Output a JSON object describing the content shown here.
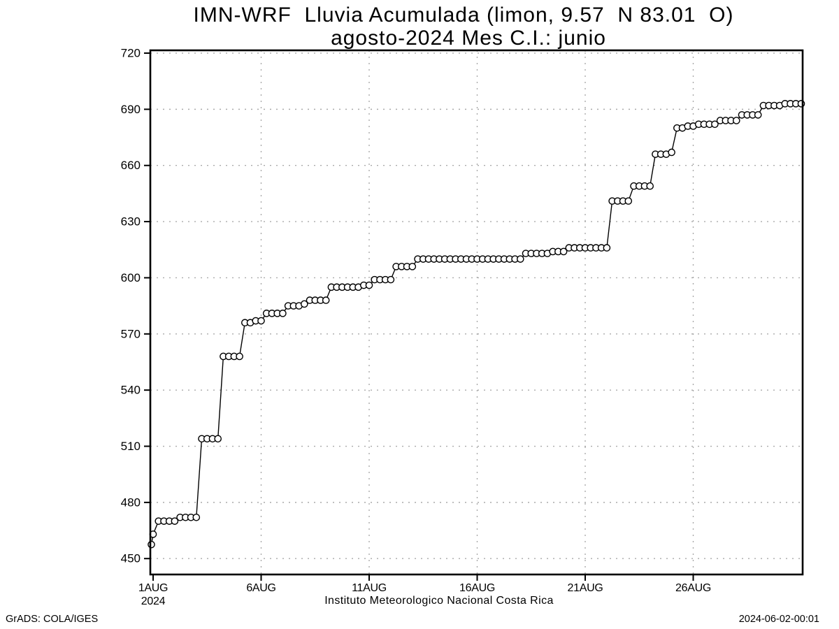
{
  "title": {
    "line1": "IMN-WRF  Lluvia Acumulada (limon, 9.57  N 83.01  O)",
    "line2": "agosto-2024 Mes C.I.: junio"
  },
  "footer": {
    "left": "GrADS: COLA/IGES",
    "right": "2024-06-02-00:01"
  },
  "chart_data": {
    "type": "line",
    "title": "IMN-WRF  Lluvia Acumulada (limon, 9.57 N 83.01 O)",
    "subtitle": "agosto-2024 Mes C.I.: junio",
    "xlabel": "Instituto Meteorologico Nacional Costa Rica",
    "ylabel": "",
    "x_unit": "days since 1AUG2024, one point every 6 hours",
    "x_year_label": "2024",
    "x_tick_labels": [
      "1AUG",
      "6AUG",
      "11AUG",
      "16AUG",
      "21AUG",
      "26AUG"
    ],
    "x_tick_days": [
      0,
      5,
      10,
      15,
      20,
      25
    ],
    "xlim_days": [
      0,
      30
    ],
    "y_ticks": [
      450,
      480,
      510,
      540,
      570,
      600,
      630,
      660,
      690,
      720
    ],
    "ylim": [
      441.5,
      721.5
    ],
    "grid": true,
    "legend": "none",
    "marker": "open-circle",
    "line_color": "#000000",
    "marker_fill": "#ffffff",
    "grid_color": "#aaaaaa",
    "lead_in_value": 457.5,
    "values": [
      463,
      470,
      470,
      470,
      470,
      472,
      472,
      472,
      472,
      514,
      514,
      514,
      514,
      558,
      558,
      558,
      558,
      576,
      576,
      577,
      577,
      581,
      581,
      581,
      581,
      585,
      585,
      585,
      586,
      588,
      588,
      588,
      588,
      595,
      595,
      595,
      595,
      595,
      595,
      596,
      596,
      599,
      599,
      599,
      599,
      606,
      606,
      606,
      606,
      610,
      610,
      610,
      610,
      610,
      610,
      610,
      610,
      610,
      610,
      610,
      610,
      610,
      610,
      610,
      610,
      610,
      610,
      610,
      610,
      613,
      613,
      613,
      613,
      613,
      614,
      614,
      614,
      616,
      616,
      616,
      616,
      616,
      616,
      616,
      616,
      641,
      641,
      641,
      641,
      649,
      649,
      649,
      649,
      666,
      666,
      666,
      667,
      680,
      680,
      681,
      681,
      682,
      682,
      682,
      682,
      684,
      684,
      684,
      684,
      687,
      687,
      687,
      687,
      692,
      692,
      692,
      692,
      693,
      693,
      693,
      693
    ]
  }
}
